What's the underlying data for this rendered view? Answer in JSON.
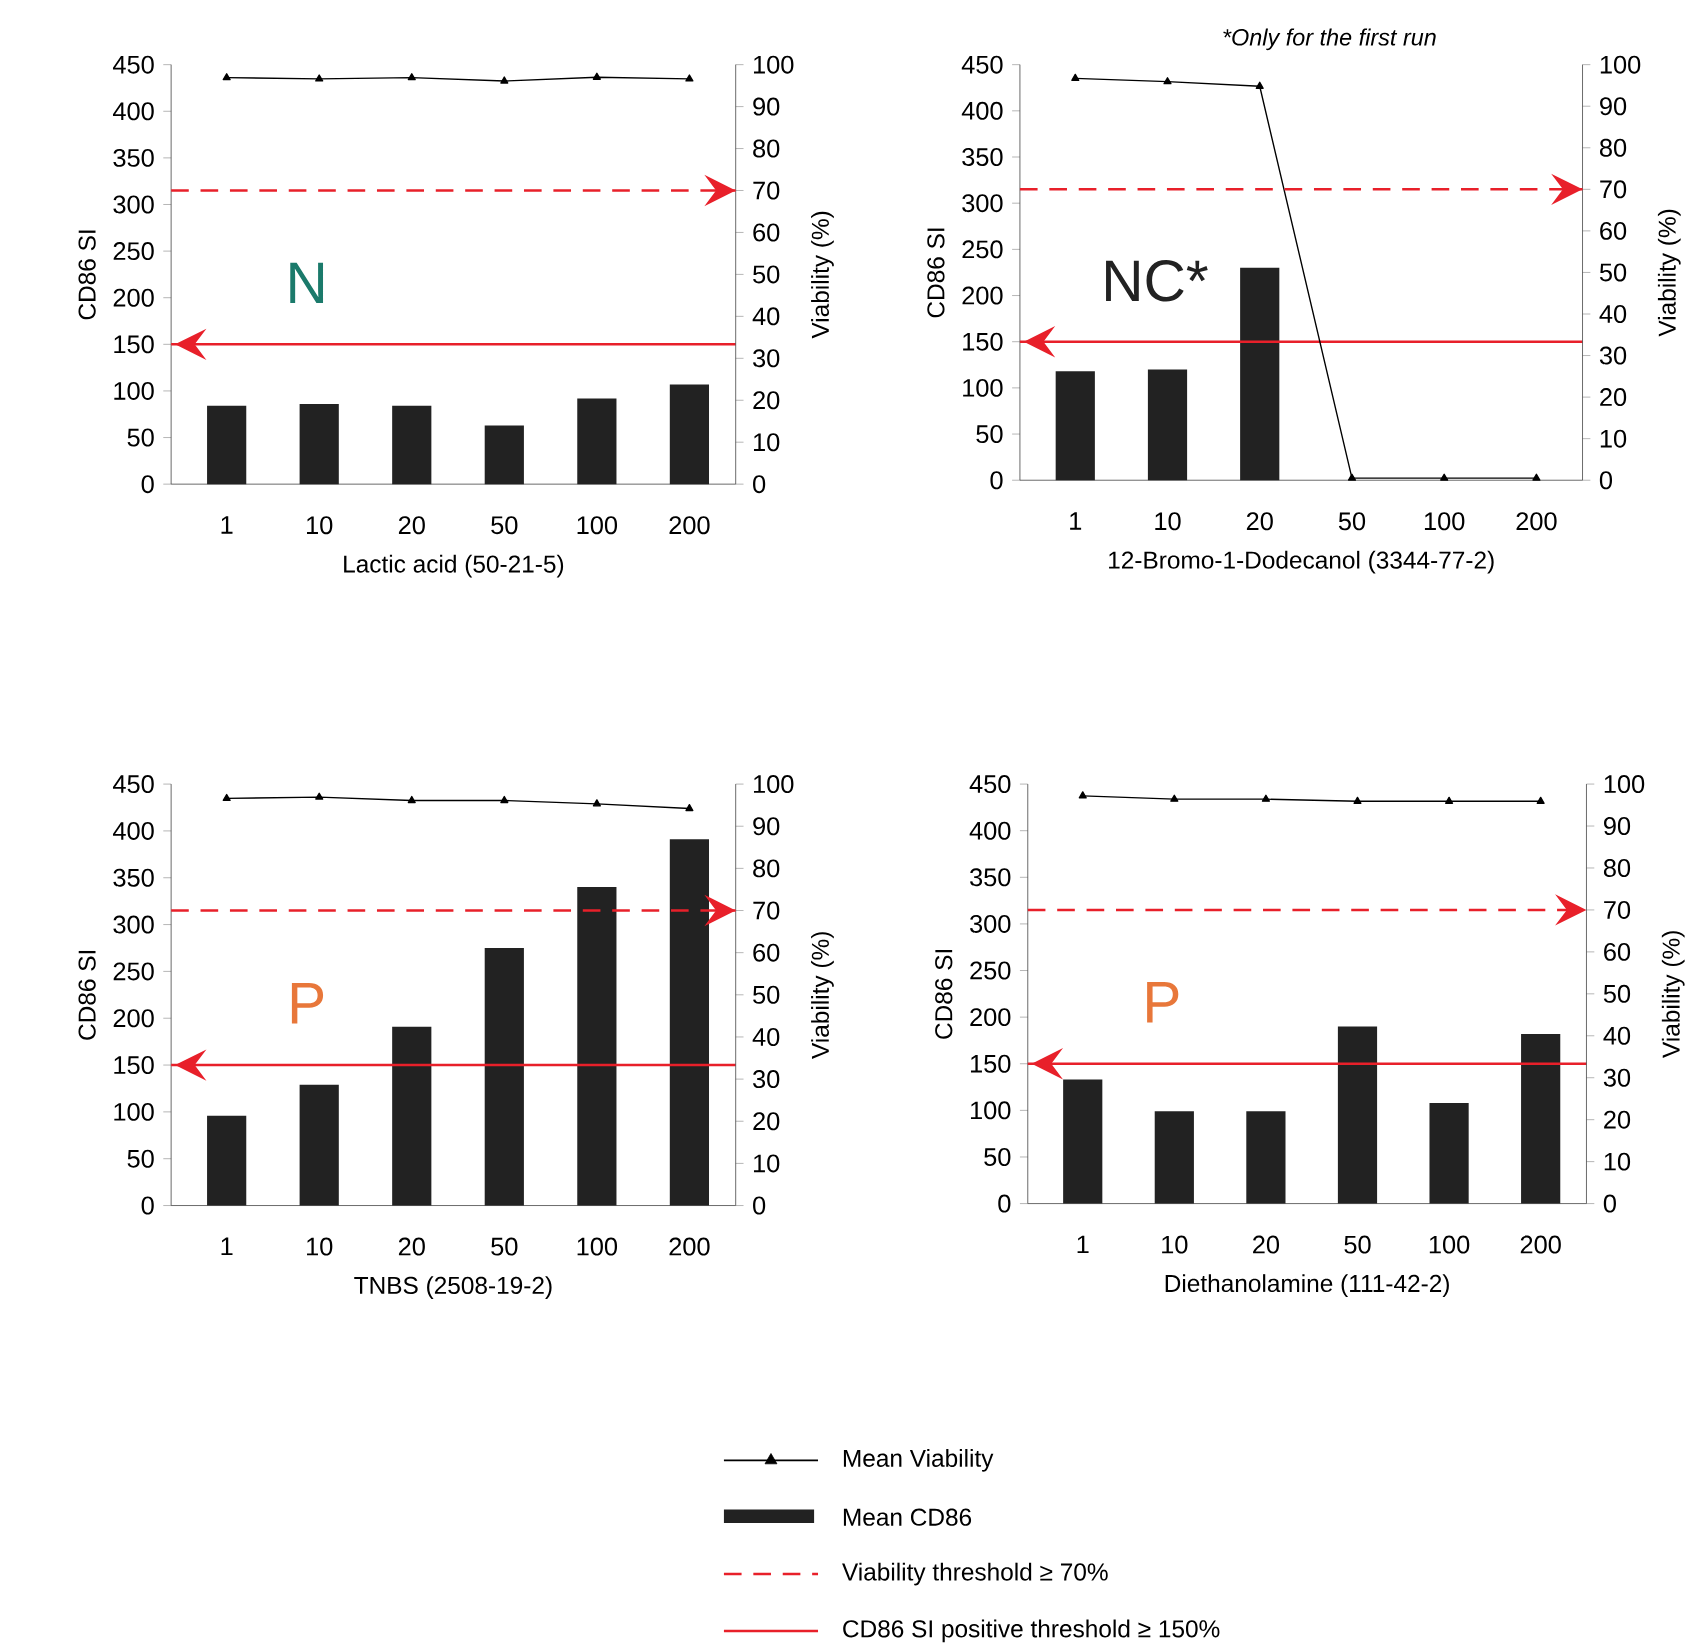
{
  "chart_data": [
    {
      "type": "bar",
      "categories": [
        "1",
        "10",
        "20",
        "50",
        "100",
        "200"
      ],
      "xlabel": "Lactic acid (50-21-5)",
      "ylabel": "CD86 SI",
      "y2label": "Viability (%)",
      "series": [
        {
          "type": "line",
          "axis": "y2",
          "color": "#000000",
          "marker": "triangle",
          "line_style": "solid",
          "values": [
            96.9,
            96.6,
            96.9,
            96.1,
            97.0,
            96.6
          ]
        },
        {
          "color": "#222222",
          "values": [
            84,
            86,
            84,
            63,
            92,
            107
          ]
        }
      ],
      "ylim": [
        0,
        450
      ],
      "yticks": [
        0,
        50,
        100,
        150,
        200,
        250,
        300,
        350,
        400,
        450
      ],
      "y2lim": [
        0,
        100
      ],
      "y2ticks": [
        0,
        10,
        20,
        30,
        40,
        50,
        60,
        70,
        80,
        90,
        100
      ],
      "ref_lines": [
        {
          "axis": "y2",
          "value": 70,
          "color": "#e8202a",
          "line_style": "dashed"
        },
        {
          "axis": "y",
          "value": 150,
          "color": "#e8202a",
          "line_style": "solid"
        }
      ],
      "annotations": [
        "N"
      ]
    },
    {
      "type": "bar",
      "categories": [
        "1",
        "10",
        "20",
        "50",
        "100",
        "200"
      ],
      "xlabel": "12-Bromo-1-Dodecanol (3344-77-2)",
      "ylabel": "CD86 SI",
      "y2label": "Viability (%)",
      "series": [
        {
          "type": "line",
          "axis": "y2",
          "color": "#000000",
          "marker": "triangle",
          "line_style": "solid",
          "values": [
            96.7,
            95.9,
            94.8,
            0.5,
            0.5,
            0.5
          ]
        },
        {
          "color": "#222222",
          "values": [
            118,
            120,
            230,
            null,
            null,
            null
          ]
        }
      ],
      "ylim": [
        0,
        450
      ],
      "yticks": [
        0,
        50,
        100,
        150,
        200,
        250,
        300,
        350,
        400,
        450
      ],
      "y2lim": [
        0,
        100
      ],
      "y2ticks": [
        0,
        10,
        20,
        30,
        40,
        50,
        60,
        70,
        80,
        90,
        100
      ],
      "ref_lines": [
        {
          "axis": "y2",
          "value": 70,
          "color": "#e8202a",
          "line_style": "dashed"
        },
        {
          "axis": "y",
          "value": 150,
          "color": "#e8202a",
          "line_style": "solid"
        }
      ],
      "annotations": [
        "*Only for the first run",
        "NC*"
      ]
    },
    {
      "type": "bar",
      "categories": [
        "1",
        "10",
        "20",
        "50",
        "100",
        "200"
      ],
      "xlabel": "TNBS (2508-19-2)",
      "ylabel": "CD86 SI",
      "y2label": "Viability (%)",
      "series": [
        {
          "type": "line",
          "axis": "y2",
          "color": "#000000",
          "marker": "triangle",
          "line_style": "solid",
          "values": [
            96.6,
            96.9,
            96.1,
            96.1,
            95.3,
            94.2
          ]
        },
        {
          "color": "#222222",
          "values": [
            96,
            129,
            191,
            275,
            340,
            391
          ]
        }
      ],
      "ylim": [
        0,
        450
      ],
      "yticks": [
        0,
        50,
        100,
        150,
        200,
        250,
        300,
        350,
        400,
        450
      ],
      "y2lim": [
        0,
        100
      ],
      "y2ticks": [
        0,
        10,
        20,
        30,
        40,
        50,
        60,
        70,
        80,
        90,
        100
      ],
      "ref_lines": [
        {
          "axis": "y2",
          "value": 70,
          "color": "#e8202a",
          "line_style": "dashed"
        },
        {
          "axis": "y",
          "value": 150,
          "color": "#e8202a",
          "line_style": "solid"
        }
      ],
      "annotations": [
        "P"
      ]
    },
    {
      "type": "bar",
      "categories": [
        "1",
        "10",
        "20",
        "50",
        "100",
        "200"
      ],
      "xlabel": "Diethanolamine (111-42-2)",
      "ylabel": "CD86 SI",
      "y2label": "Viability (%)",
      "series": [
        {
          "type": "line",
          "axis": "y2",
          "name": "Mean Viability",
          "color": "#000000",
          "marker": "triangle",
          "line_style": "solid",
          "values": [
            97.2,
            96.4,
            96.4,
            95.9,
            95.9,
            95.9
          ]
        },
        {
          "name": "Mean CD86",
          "color": "#222222",
          "values": [
            133,
            99,
            99,
            190,
            108,
            182
          ]
        }
      ],
      "ylim": [
        0,
        450
      ],
      "yticks": [
        0,
        50,
        100,
        150,
        200,
        250,
        300,
        350,
        400,
        450
      ],
      "y2lim": [
        0,
        100
      ],
      "y2ticks": [
        0,
        10,
        20,
        30,
        40,
        50,
        60,
        70,
        80,
        90,
        100
      ],
      "ref_lines": [
        {
          "axis": "y2",
          "value": 70,
          "label": "Viability threshold ≥ 70%",
          "color": "#e8202a",
          "line_style": "dashed"
        },
        {
          "axis": "y",
          "value": 150,
          "label": "CD86 SI positive threshold ≥ 150%",
          "color": "#e8202a",
          "line_style": "solid"
        }
      ],
      "annotations": [
        "P"
      ],
      "legend": "bottom"
    }
  ]
}
